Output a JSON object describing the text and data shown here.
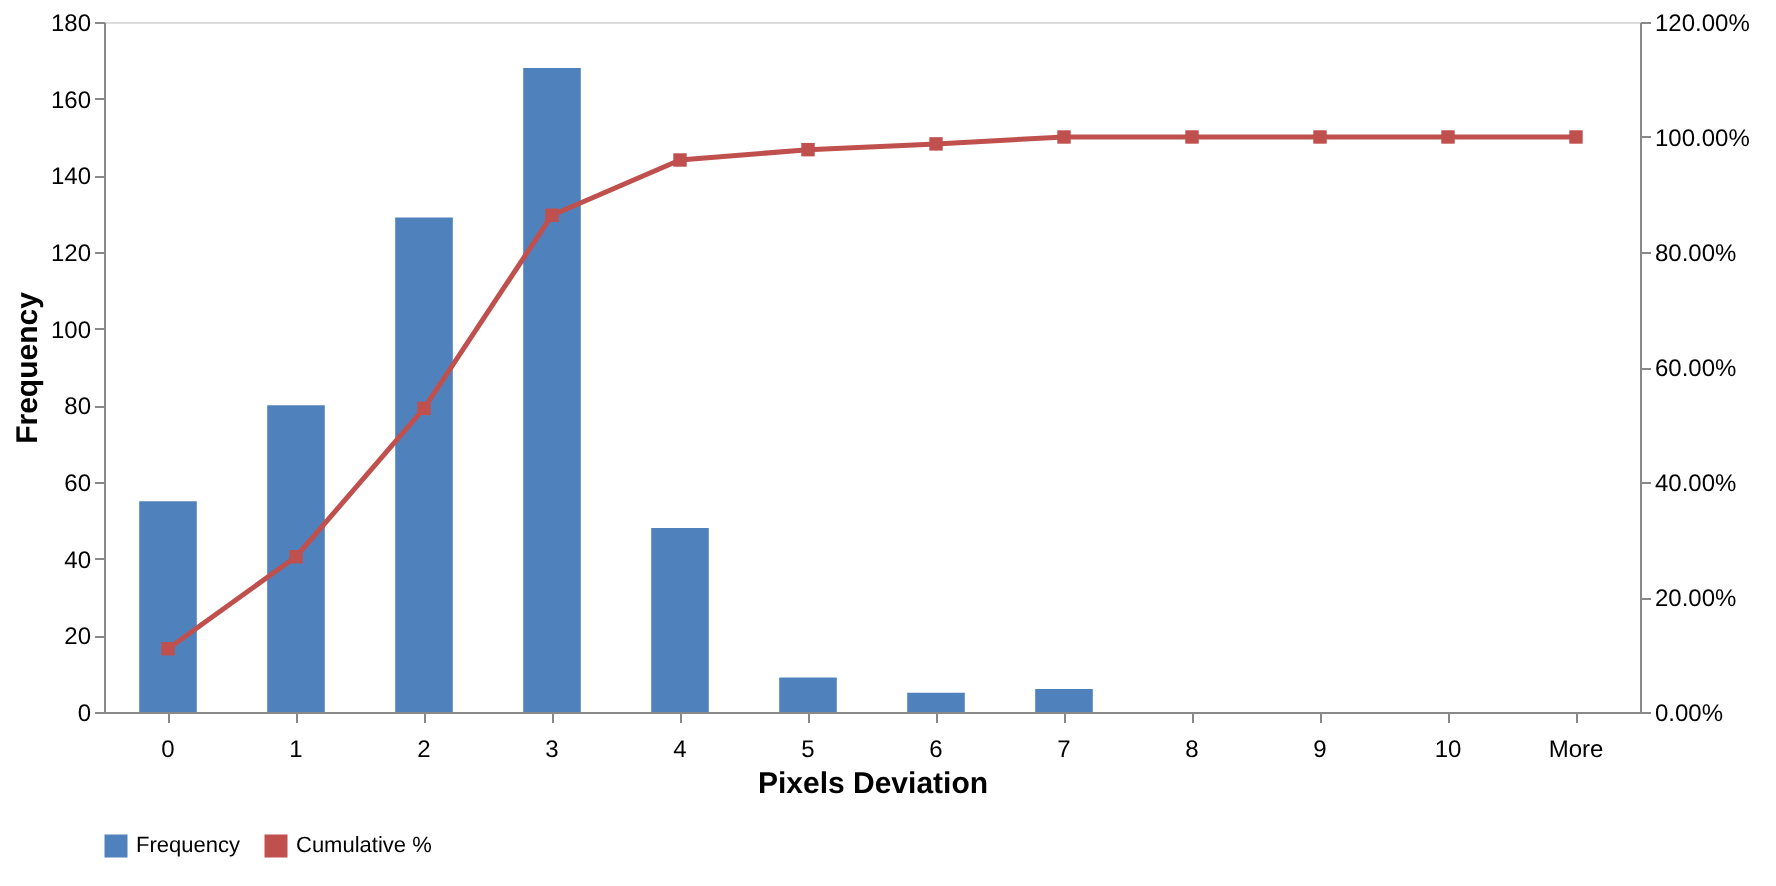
{
  "chart_data": {
    "type": "bar",
    "xlabel": "Pixels Deviation",
    "ylabel": "Frequency",
    "categories": [
      "0",
      "1",
      "2",
      "3",
      "4",
      "5",
      "6",
      "7",
      "8",
      "9",
      "10",
      "More"
    ],
    "series": [
      {
        "name": "Frequency",
        "color": "#4f81bd",
        "values": [
          55,
          80,
          129,
          168,
          48,
          9,
          5,
          6,
          0,
          0,
          0,
          0
        ]
      },
      {
        "name": "Cumulative %",
        "type": "line",
        "axis": "y2",
        "color": "#c0504d",
        "marker": "square",
        "values": [
          11.0,
          27.0,
          52.8,
          86.4,
          96.0,
          97.8,
          98.8,
          100,
          100,
          100,
          100,
          100
        ]
      }
    ],
    "ylim": [
      0,
      180
    ],
    "yticks": [
      0,
      20,
      40,
      60,
      80,
      100,
      120,
      140,
      160,
      180
    ],
    "y2lim": [
      0,
      120
    ],
    "y2ticks": [
      {
        "value": 0,
        "label": "0.00%"
      },
      {
        "value": 20,
        "label": "20.00%"
      },
      {
        "value": 40,
        "label": "40.00%"
      },
      {
        "value": 60,
        "label": "60.00%"
      },
      {
        "value": 80,
        "label": "80.00%"
      },
      {
        "value": 100,
        "label": "100.00%"
      },
      {
        "value": 120,
        "label": "120.00%"
      }
    ],
    "grid": false,
    "legend": "bottom"
  }
}
